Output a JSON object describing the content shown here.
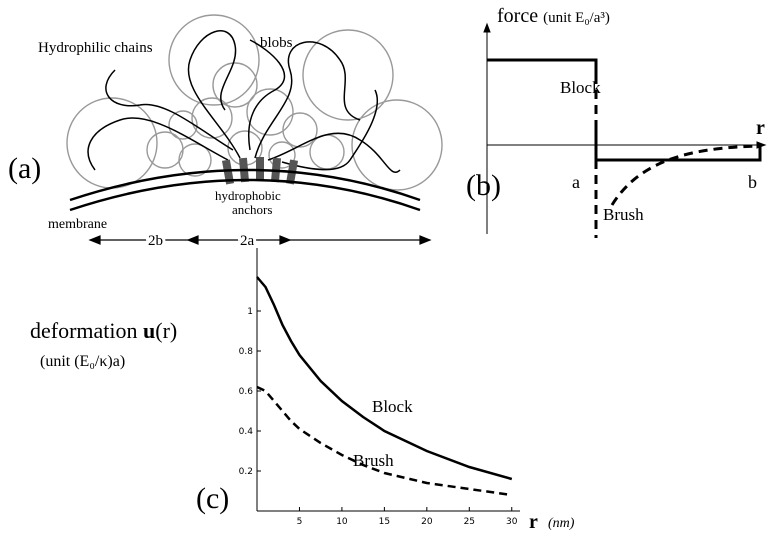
{
  "panel_a": {
    "label": "(a)",
    "chains": "Hydrophilic chains",
    "blobs": "blobs",
    "anchors_line1": "hydrophobic",
    "anchors_line2": "anchors",
    "membrane": "membrane",
    "span_b": "2b",
    "span_a": "2a"
  },
  "panel_b": {
    "label": "(b)",
    "ylabel_main": "force",
    "ylabel_unit": "(unit E₀/a³)",
    "block": "Block",
    "brush": "Brush",
    "xlabel": "r",
    "mark_a": "a",
    "mark_b": "b"
  },
  "chart_data": {
    "type": "line",
    "panel_label": "(c)",
    "ylabel_main": "deformation ",
    "ylabel_bold": "u",
    "ylabel_arg": "(r)",
    "ylabel_unit": "(unit (E₀/κ)a)",
    "xlabel": "r",
    "xunit": "(nm)",
    "x": [
      0,
      1,
      2,
      3,
      4,
      5,
      7.5,
      10,
      12.5,
      15,
      20,
      25,
      30
    ],
    "series": [
      {
        "name": "Block",
        "color": "#000000",
        "line_style": "solid",
        "values": [
          1.17,
          1.12,
          1.03,
          0.93,
          0.85,
          0.78,
          0.65,
          0.55,
          0.47,
          0.4,
          0.3,
          0.22,
          0.16
        ]
      },
      {
        "name": "Brush",
        "color": "#000000",
        "line_style": "dashed",
        "values": [
          0.62,
          0.6,
          0.55,
          0.5,
          0.45,
          0.41,
          0.34,
          0.28,
          0.23,
          0.19,
          0.14,
          0.11,
          0.08
        ]
      }
    ],
    "xlim": [
      0,
      30.5
    ],
    "ylim": [
      0,
      1.3
    ],
    "xticks": [
      5,
      10,
      15,
      20,
      25,
      30
    ],
    "yticks": [
      0.2,
      0.4,
      0.6,
      0.8,
      1
    ]
  }
}
